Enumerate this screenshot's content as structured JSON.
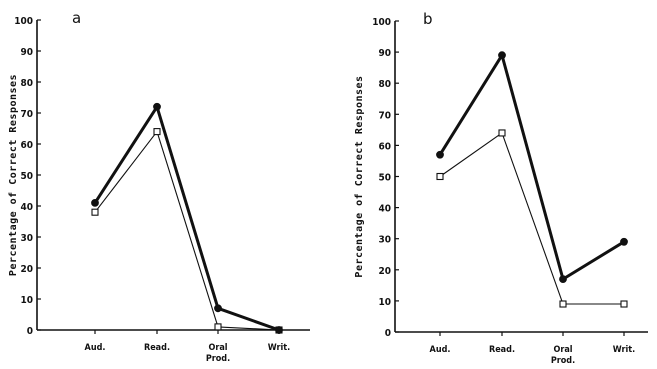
{
  "chart_data": [
    {
      "type": "line",
      "panel_label": "a",
      "categories": [
        "Aud.",
        "Read.",
        "Oral Prod.",
        "Writ."
      ],
      "ylabel": "Percentage of Correct Responses",
      "ylim": [
        0,
        100
      ],
      "yticks": [
        "0",
        "10",
        "20",
        "30",
        "40",
        "50",
        "60",
        "70",
        "80",
        "90",
        "100"
      ],
      "grid": false,
      "legend": "none",
      "series": [
        {
          "marker": "filled-circle",
          "line": "thick",
          "color": "#111111",
          "values": [
            41,
            72,
            7,
            0
          ]
        },
        {
          "marker": "open-square",
          "line": "thin",
          "color": "#111111",
          "values": [
            38,
            64,
            1,
            0
          ]
        }
      ]
    },
    {
      "type": "line",
      "panel_label": "b",
      "categories": [
        "Aud.",
        "Read.",
        "Oral Prod.",
        "Writ."
      ],
      "ylabel": "Percentage of Correct Responses",
      "ylim": [
        0,
        100
      ],
      "yticks": [
        "0",
        "10",
        "20",
        "30",
        "40",
        "50",
        "60",
        "70",
        "80",
        "90",
        "100"
      ],
      "grid": false,
      "legend": "none",
      "series": [
        {
          "marker": "filled-circle",
          "line": "thick",
          "color": "#111111",
          "values": [
            57,
            89,
            17,
            29
          ]
        },
        {
          "marker": "open-square",
          "line": "thin",
          "color": "#111111",
          "values": [
            50,
            64,
            9,
            9
          ]
        }
      ]
    }
  ]
}
